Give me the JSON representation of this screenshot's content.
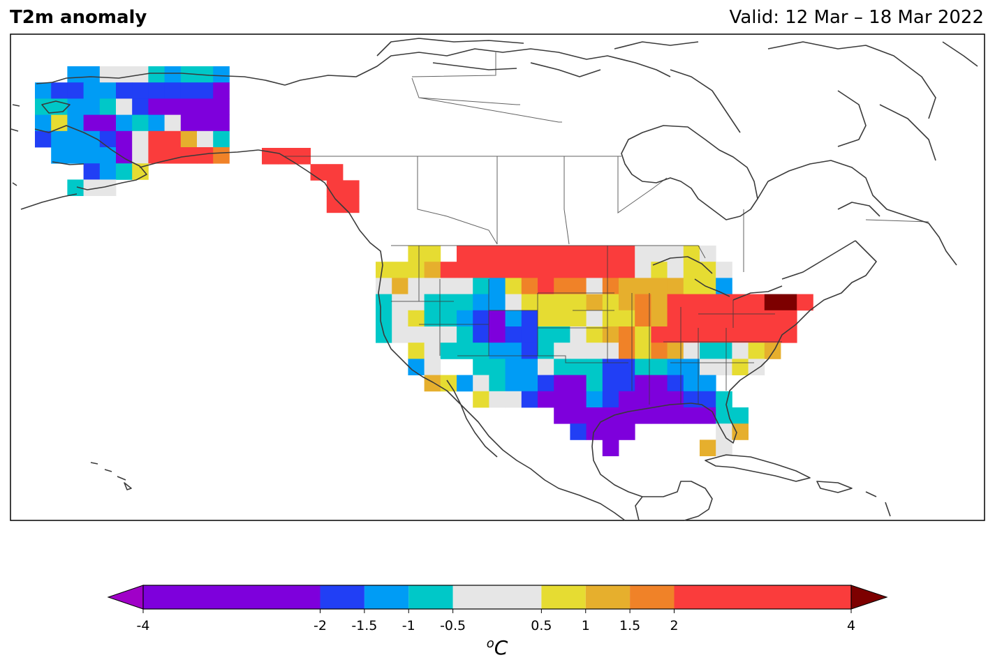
{
  "header": {
    "title": "T2m anomaly",
    "valid": "Valid: 12 Mar – 18 Mar 2022"
  },
  "colorbar": {
    "unit_base": "C",
    "unit_sup": "o",
    "levels": [
      -4,
      -2,
      -1.5,
      -1,
      -0.5,
      0.5,
      1,
      1.5,
      2,
      4
    ],
    "tick_labels": [
      "-4",
      "-2",
      "-1.5",
      "-1",
      "-0.5",
      "0.5",
      "1",
      "1.5",
      "2",
      "4"
    ],
    "bin_colors": [
      "#7e00dc",
      "#213ff5",
      "#009cf5",
      "#00c8c8",
      "#e6e6e6",
      "#e6dc32",
      "#e6af2d",
      "#f08228",
      "#fa3c3c"
    ],
    "under_color": "#a000c8",
    "over_color": "#7d0000"
  },
  "legend_classes": {
    "P": "#7e00dc",
    "B": "#213ff5",
    "L": "#009cf5",
    "C": "#00c8c8",
    "G": "#e6e6e6",
    "Y": "#e6dc32",
    "A": "#e6af2d",
    "O": "#f08228",
    "R": "#fa3c3c",
    "D": "#7d0000"
  },
  "anomaly_grid": {
    "alaska": [
      "..LLGGGCLCCL",
      "LBBLLBBBBBBP",
      "CCLLCGBPPPPP",
      "LYLPPLCLGPPP",
      "BLLLBPGRRAGC",
      ".LLLLPGRRRRO",
      "...BLCY.....",
      "..CGG......."
    ],
    "panhandle": [
      "RRR...",
      "...RR.",
      "....RR",
      "....RR"
    ],
    "conus": [
      "..YG...................................................................................",
      "............................................................................"
    ]
  }
}
